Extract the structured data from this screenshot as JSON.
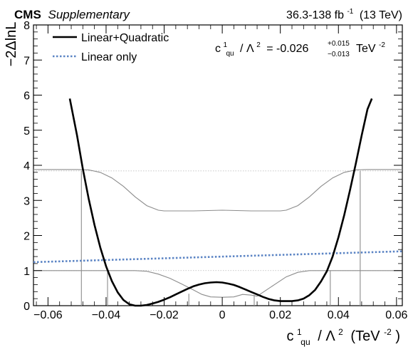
{
  "header": {
    "experiment": "CMS",
    "qualifier": "Supplementary",
    "lumi": "36.3-138 fb",
    "lumi_exp": "-1",
    "energy": "(13 TeV)"
  },
  "result": {
    "coef_base": "c",
    "coef_sup": "1",
    "coef_sub": "qu",
    "lambda_part": "/ Λ",
    "lambda_exp": "2",
    "value": "= -0.026",
    "err_up": "+0.015",
    "err_down": "−0.013",
    "unit": "TeV",
    "unit_exp": "-2"
  },
  "axes": {
    "ylabel": "−2ΔlnL",
    "xlabel_coef": "c",
    "xlabel_sup": "1",
    "xlabel_sub": "qu",
    "xlabel_rest": "/ Λ",
    "xlabel_exp1": "2",
    "xlabel_unit": "(TeV",
    "xlabel_exp2": "-2",
    "xlabel_close": ")"
  },
  "colors": {
    "quadratic": "#000000",
    "linear": "#5b84c4",
    "thresholds": "#8c8c8c",
    "reference": "#b4b4b4"
  },
  "chart_data": {
    "type": "line",
    "xlim": [
      -0.065,
      0.062
    ],
    "ylim": [
      0,
      8
    ],
    "xticks": [
      -0.06,
      -0.04,
      -0.02,
      0,
      0.02,
      0.04,
      0.06
    ],
    "xtick_labels": [
      "−0.06",
      "−0.04",
      "−0.02",
      "0",
      "0.02",
      "0.04",
      "0.06"
    ],
    "yticks": [
      0,
      1,
      2,
      3,
      4,
      5,
      6,
      7,
      8
    ],
    "ytick_labels": [
      "0",
      "1",
      "2",
      "3",
      "4",
      "5",
      "6",
      "7",
      "8"
    ],
    "legend_position": "top-left",
    "reference_levels": [
      1,
      3.84
    ],
    "series": [
      {
        "name": "Linear+Quadratic",
        "style": "solid",
        "x": [
          -0.0525,
          -0.05,
          -0.048,
          -0.046,
          -0.044,
          -0.042,
          -0.04,
          -0.038,
          -0.036,
          -0.034,
          -0.032,
          -0.03,
          -0.028,
          -0.026,
          -0.024,
          -0.022,
          -0.02,
          -0.018,
          -0.016,
          -0.014,
          -0.012,
          -0.01,
          -0.008,
          -0.006,
          -0.004,
          -0.002,
          0,
          0.002,
          0.004,
          0.006,
          0.008,
          0.01,
          0.012,
          0.014,
          0.016,
          0.018,
          0.02,
          0.022,
          0.024,
          0.026,
          0.028,
          0.03,
          0.032,
          0.034,
          0.036,
          0.038,
          0.04,
          0.042,
          0.044,
          0.046,
          0.048,
          0.05,
          0.0515
        ],
        "y": [
          5.9,
          4.85,
          3.9,
          3.05,
          2.3,
          1.66,
          1.12,
          0.7,
          0.38,
          0.16,
          0.04,
          0.0,
          0.0,
          0.02,
          0.06,
          0.11,
          0.17,
          0.24,
          0.32,
          0.4,
          0.48,
          0.55,
          0.6,
          0.64,
          0.66,
          0.67,
          0.66,
          0.63,
          0.59,
          0.53,
          0.46,
          0.39,
          0.32,
          0.25,
          0.19,
          0.15,
          0.13,
          0.13,
          0.13,
          0.15,
          0.2,
          0.3,
          0.45,
          0.69,
          0.98,
          1.4,
          1.95,
          2.58,
          3.3,
          4.05,
          4.85,
          5.6,
          5.9
        ]
      },
      {
        "name": "Linear only",
        "style": "dotted",
        "x": [
          -0.065,
          0.062
        ],
        "y": [
          1.24,
          1.55
        ]
      }
    ],
    "threshold_curves": [
      {
        "x": [
          -0.065,
          -0.05,
          -0.046,
          -0.042,
          -0.038,
          -0.034,
          -0.03,
          -0.026,
          -0.022,
          -0.02,
          -0.01,
          0,
          0.01,
          0.02,
          0.022,
          0.026,
          0.03,
          0.034,
          0.038,
          0.042,
          0.046,
          0.05,
          0.062
        ],
        "y": [
          3.88,
          3.88,
          3.87,
          3.8,
          3.64,
          3.4,
          3.1,
          2.85,
          2.72,
          2.7,
          2.7,
          2.72,
          2.7,
          2.7,
          2.72,
          2.85,
          3.1,
          3.4,
          3.64,
          3.8,
          3.87,
          3.88,
          3.88
        ]
      },
      {
        "x": [
          -0.065,
          -0.03,
          -0.026,
          -0.022,
          -0.018,
          -0.014,
          -0.01,
          -0.007,
          -0.004,
          0,
          0.004,
          0.007,
          0.01,
          0.012,
          0.014,
          0.018,
          0.022,
          0.026,
          0.03,
          0.062
        ],
        "y": [
          1.0,
          1.0,
          0.98,
          0.9,
          0.78,
          0.62,
          0.45,
          0.32,
          0.25,
          0.24,
          0.25,
          0.32,
          0.3,
          0.27,
          0.38,
          0.6,
          0.82,
          0.95,
          1.0,
          1.0
        ]
      }
    ],
    "threshold_verticals": [
      {
        "x": -0.0485,
        "y": 3.84
      },
      {
        "x": -0.0395,
        "y": 1.0
      },
      {
        "x": -0.0115,
        "y": 0.34
      },
      {
        "x": 0.011,
        "y": 0.31
      },
      {
        "x": 0.0372,
        "y": 1.0
      },
      {
        "x": 0.0475,
        "y": 3.84
      }
    ]
  }
}
